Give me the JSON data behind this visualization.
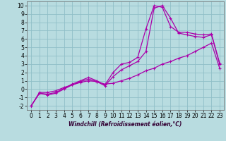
{
  "xlabel": "Windchill (Refroidissement éolien,°C)",
  "xlim": [
    -0.5,
    23.5
  ],
  "ylim": [
    -2.5,
    10.5
  ],
  "xticks": [
    0,
    1,
    2,
    3,
    4,
    5,
    6,
    7,
    8,
    9,
    10,
    11,
    12,
    13,
    14,
    15,
    16,
    17,
    18,
    19,
    20,
    21,
    22,
    23
  ],
  "yticks": [
    -2,
    -1,
    0,
    1,
    2,
    3,
    4,
    5,
    6,
    7,
    8,
    9,
    10
  ],
  "background_color": "#b8dce0",
  "grid_color": "#90bfc8",
  "line_color": "#aa00aa",
  "line1_x": [
    0,
    1,
    2,
    3,
    4,
    5,
    6,
    7,
    8,
    9,
    10,
    11,
    12,
    13,
    14,
    15,
    16,
    17,
    18,
    19,
    20,
    21,
    22,
    23
  ],
  "line1_y": [
    -2.0,
    -0.5,
    -0.6,
    -0.4,
    0.1,
    0.6,
    1.0,
    1.4,
    1.0,
    0.5,
    2.0,
    3.0,
    3.2,
    3.8,
    7.2,
    10.0,
    9.8,
    7.5,
    6.8,
    6.8,
    6.6,
    6.5,
    6.6,
    3.1
  ],
  "line2_x": [
    0,
    1,
    2,
    3,
    4,
    5,
    6,
    7,
    8,
    9,
    10,
    11,
    12,
    13,
    14,
    15,
    16,
    17,
    18,
    19,
    20,
    21,
    22,
    23
  ],
  "line2_y": [
    -2.0,
    -0.5,
    -0.7,
    -0.5,
    0.0,
    0.5,
    0.9,
    1.2,
    0.9,
    0.4,
    1.5,
    2.3,
    2.8,
    3.3,
    4.5,
    9.7,
    10.0,
    8.5,
    6.7,
    6.5,
    6.3,
    6.2,
    6.5,
    3.0
  ],
  "line3_x": [
    0,
    1,
    2,
    3,
    4,
    5,
    6,
    7,
    8,
    9,
    10,
    11,
    12,
    13,
    14,
    15,
    16,
    17,
    18,
    19,
    20,
    21,
    22,
    23
  ],
  "line3_y": [
    -2.0,
    -0.4,
    -0.4,
    -0.2,
    0.2,
    0.5,
    0.8,
    1.0,
    0.9,
    0.6,
    0.7,
    1.0,
    1.3,
    1.7,
    2.2,
    2.5,
    3.0,
    3.3,
    3.7,
    4.0,
    4.5,
    5.0,
    5.5,
    2.5
  ],
  "tick_fontsize": 5.5,
  "xlabel_fontsize": 5.5
}
